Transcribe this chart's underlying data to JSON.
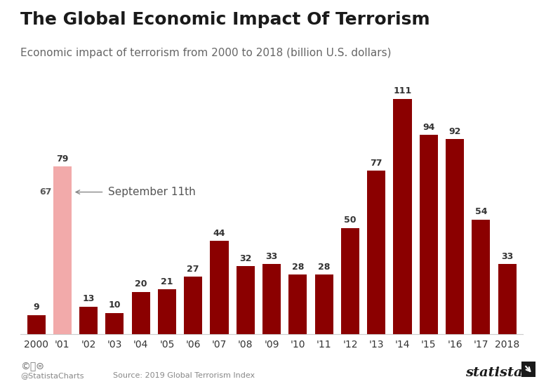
{
  "title": "The Global Economic Impact Of Terrorism",
  "subtitle": "Economic impact of terrorism from 2000 to 2018 (billion U.S. dollars)",
  "categories": [
    "2000",
    "'01",
    "'02",
    "'03",
    "'04",
    "'05",
    "'06",
    "'07",
    "'08",
    "'09",
    "'10",
    "'11",
    "'12",
    "'13",
    "'14",
    "'15",
    "'16",
    "'17",
    "2018"
  ],
  "values": [
    9,
    79,
    13,
    10,
    20,
    21,
    27,
    44,
    32,
    33,
    28,
    28,
    50,
    77,
    111,
    94,
    92,
    54,
    33
  ],
  "bar_colors": [
    "#8B0000",
    "#F2AAAA",
    "#8B0000",
    "#8B0000",
    "#8B0000",
    "#8B0000",
    "#8B0000",
    "#8B0000",
    "#8B0000",
    "#8B0000",
    "#8B0000",
    "#8B0000",
    "#8B0000",
    "#8B0000",
    "#8B0000",
    "#8B0000",
    "#8B0000",
    "#8B0000",
    "#8B0000"
  ],
  "special_bar_index": 1,
  "special_label_value": 67,
  "annotation_text": "September 11th",
  "ylim": [
    0,
    125
  ],
  "background_color": "#ffffff",
  "plot_bg_color": "#f0f0f0",
  "title_fontsize": 18,
  "subtitle_fontsize": 11,
  "label_fontsize": 9,
  "tick_fontsize": 10,
  "source_text": "Source: 2019 Global Terrorism Index",
  "credit_text": "@StatistaCharts",
  "dark_red": "#8B0000",
  "light_pink": "#F2AAAA",
  "text_color_dark": "#333333",
  "text_color_mid": "#555555",
  "text_color_light": "#888888"
}
